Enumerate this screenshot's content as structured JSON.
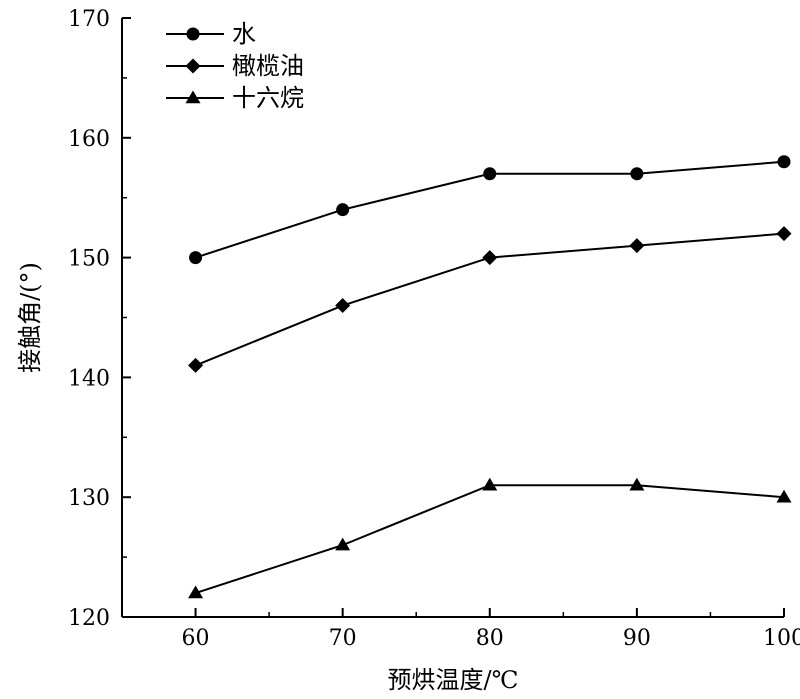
{
  "chart_data": {
    "type": "line",
    "title": "",
    "xlabel": "预烘温度/℃",
    "ylabel": "接触角/(°)",
    "x": [
      60,
      70,
      80,
      90,
      100
    ],
    "xlim": [
      55,
      100
    ],
    "ylim": [
      120,
      170
    ],
    "xticks": [
      60,
      70,
      80,
      90,
      100
    ],
    "yticks": [
      120,
      130,
      140,
      150,
      160,
      170
    ],
    "grid": false,
    "legend_position": "top-left",
    "series": [
      {
        "name": "水",
        "marker": "circle",
        "values": [
          150,
          154,
          157,
          157,
          158
        ]
      },
      {
        "name": "橄榄油",
        "marker": "diamond",
        "values": [
          141,
          146,
          150,
          151,
          152
        ]
      },
      {
        "name": "十六烷",
        "marker": "triangle",
        "values": [
          122,
          126,
          131,
          131,
          130
        ]
      }
    ],
    "colors": {
      "line": "#000000",
      "marker": "#000000"
    }
  }
}
